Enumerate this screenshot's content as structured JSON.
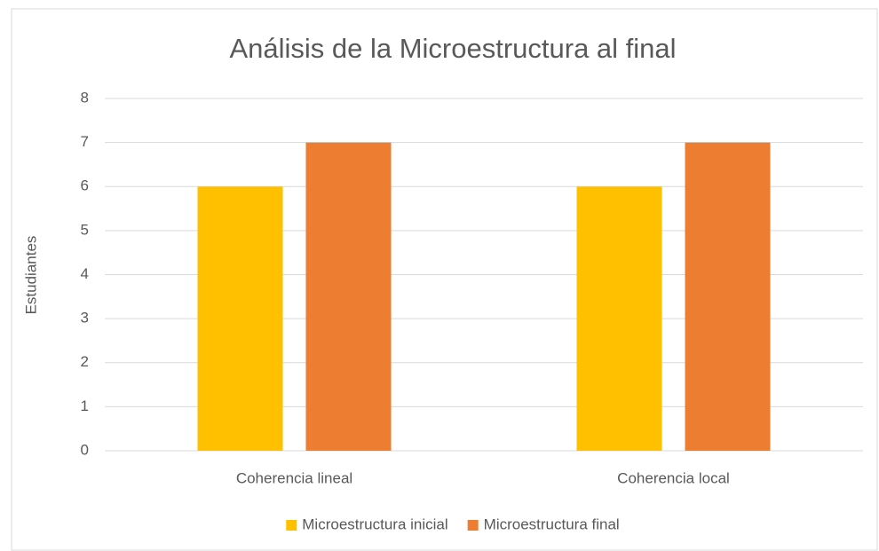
{
  "chart_data": {
    "type": "bar",
    "title": "Análisis de la Microestructura al final",
    "y_label": "Estudiantes",
    "categories": [
      "Coherencia lineal",
      "Coherencia local"
    ],
    "series": [
      {
        "name": "Microestructura inicial",
        "color": "#ffc000",
        "values": [
          6,
          6
        ]
      },
      {
        "name": "Microestructura final",
        "color": "#ed7d31",
        "values": [
          7,
          7
        ]
      }
    ],
    "ylim": [
      0,
      8
    ],
    "yticks": [
      0,
      1,
      2,
      3,
      4,
      5,
      6,
      7,
      8
    ],
    "grid": true,
    "legend": "bottom"
  }
}
